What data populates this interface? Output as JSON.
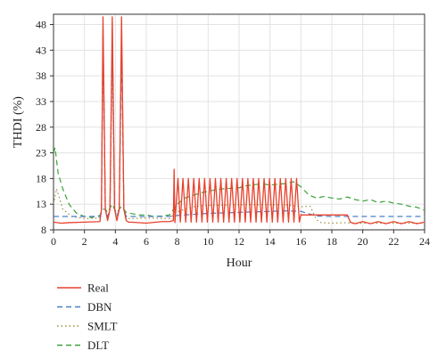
{
  "chart_data": {
    "type": "line",
    "xlabel": "Hour",
    "ylabel": "THDI (%)",
    "xlim": [
      0,
      24
    ],
    "ylim": [
      8,
      50
    ],
    "xticks": [
      "0",
      "2",
      "4",
      "6",
      "8",
      "10",
      "12",
      "14",
      "16",
      "18",
      "20",
      "22",
      "24"
    ],
    "yticks": [
      "8",
      "13",
      "18",
      "23",
      "28",
      "33",
      "38",
      "43",
      "48"
    ],
    "grid": true,
    "legend_position": "below-left",
    "series": [
      {
        "name": "Real",
        "color": "#e8412c",
        "style": "solid",
        "x": [
          0,
          0.5,
          1,
          2,
          3,
          3.1,
          3.2,
          3.35,
          3.5,
          3.65,
          3.8,
          3.95,
          4.1,
          4.25,
          4.4,
          4.55,
          4.7,
          4.85,
          5,
          6,
          7,
          7.5,
          7.75,
          7.8,
          7.85,
          8.05,
          8.2,
          8.37,
          8.55,
          8.72,
          8.9,
          9.07,
          9.25,
          9.42,
          9.6,
          9.77,
          9.95,
          10.12,
          10.3,
          10.47,
          10.65,
          10.82,
          11,
          11.17,
          11.35,
          11.52,
          11.7,
          11.87,
          12.05,
          12.22,
          12.4,
          12.57,
          12.75,
          12.92,
          13.1,
          13.27,
          13.45,
          13.62,
          13.8,
          13.97,
          14.15,
          14.32,
          14.5,
          14.67,
          14.85,
          15.02,
          15.2,
          15.37,
          15.55,
          15.72,
          15.9,
          16.0,
          16.05,
          17,
          18,
          19,
          19.2,
          19.5,
          20,
          20.5,
          21,
          21.5,
          22,
          22.5,
          23,
          23.5,
          24
        ],
        "y": [
          9.5,
          9.3,
          9.4,
          9.5,
          9.6,
          12,
          49.5,
          12,
          9.8,
          12,
          49.5,
          12,
          9.8,
          12,
          49.5,
          12,
          9.8,
          9.5,
          9.5,
          9.3,
          9.6,
          9.6,
          9.8,
          19.8,
          9.4,
          18,
          9.5,
          18,
          9.5,
          18,
          9.5,
          18,
          9.5,
          18,
          9.5,
          18,
          9.5,
          18,
          9.5,
          18,
          9.5,
          18,
          9.5,
          18,
          9.5,
          18,
          9.5,
          18,
          9.5,
          18,
          9.5,
          18,
          9.5,
          18,
          9.5,
          18,
          9.5,
          18,
          9.5,
          18,
          9.5,
          18,
          9.5,
          18,
          9.5,
          18,
          9.5,
          18,
          9.5,
          18,
          9.5,
          11,
          10.9,
          10.9,
          10.9,
          10.9,
          9.5,
          9.2,
          9.6,
          9.2,
          9.6,
          9.2,
          9.6,
          9.2,
          9.6,
          9.2,
          9.5
        ]
      },
      {
        "name": "DBN",
        "color": "#4a7fc9",
        "style": "dashed",
        "x": [
          0,
          3,
          3.1,
          3.2,
          3.35,
          3.5,
          3.65,
          3.8,
          3.95,
          4.1,
          4.25,
          4.4,
          4.55,
          4.7,
          4.9,
          7.5,
          8,
          9,
          10,
          11,
          12,
          13,
          14,
          15,
          16,
          17,
          18,
          24
        ],
        "y": [
          10.6,
          10.6,
          12,
          47,
          12,
          10.6,
          12,
          45,
          12,
          10.6,
          12,
          44,
          12,
          10.6,
          10.6,
          10.6,
          10.8,
          11,
          11.2,
          11.3,
          11.4,
          11.5,
          11.6,
          11.7,
          11.6,
          10.7,
          10.6,
          10.6
        ]
      },
      {
        "name": "SMLT",
        "color": "#9a8f3a",
        "style": "dotted",
        "x": [
          0,
          0.2,
          0.6,
          1.2,
          2,
          3,
          3.1,
          3.2,
          3.35,
          3.5,
          3.65,
          3.8,
          3.95,
          4.1,
          4.25,
          4.4,
          4.55,
          4.7,
          5,
          6,
          7.5,
          8,
          9,
          10,
          11,
          12,
          13,
          14,
          15,
          16,
          16.6,
          17,
          17.3,
          18,
          19,
          19.5,
          20,
          22,
          24
        ],
        "y": [
          13,
          16,
          12,
          10.6,
          10.2,
          10.3,
          12,
          44,
          12,
          10.2,
          12,
          42,
          12,
          10.2,
          12,
          43,
          12,
          10.2,
          10.2,
          10.3,
          10.2,
          11.5,
          12.5,
          12.8,
          12.8,
          12.9,
          12.9,
          12.9,
          12.9,
          12.5,
          12.6,
          10,
          9.4,
          9.3,
          9.4,
          9.2,
          9.3,
          9.3,
          9.3
        ]
      },
      {
        "name": "DLT",
        "color": "#3aa23a",
        "style": "dashed",
        "x": [
          0,
          0.1,
          0.3,
          0.6,
          1,
          1.5,
          2,
          2.5,
          3,
          3.2,
          3.35,
          3.5,
          3.8,
          3.95,
          4.1,
          4.4,
          4.55,
          4.7,
          5,
          5.5,
          6,
          6.5,
          7,
          7.5,
          8,
          8.5,
          9,
          9.5,
          10,
          10.5,
          11,
          11.5,
          12,
          12.5,
          13,
          13.5,
          14,
          14.5,
          15,
          15.5,
          16,
          16.5,
          17,
          17.5,
          18,
          18.5,
          19,
          19.5,
          20,
          20.5,
          21,
          21.5,
          22,
          22.5,
          23,
          23.5,
          24
        ],
        "y": [
          23,
          24,
          19,
          16,
          13,
          11.2,
          10.6,
          10.4,
          10.8,
          12,
          12,
          11.4,
          13,
          12,
          11.4,
          12.6,
          12,
          11.4,
          11.2,
          10.9,
          10.9,
          10.6,
          10.7,
          10.9,
          13,
          14.2,
          14.7,
          15.2,
          15.5,
          15.8,
          16,
          16.1,
          16.2,
          16.6,
          16.8,
          17,
          16.7,
          16.9,
          17,
          17.4,
          16.4,
          14.8,
          14.2,
          14.5,
          14.2,
          14.0,
          14.4,
          13.9,
          13.6,
          13.9,
          13.3,
          13.6,
          13.2,
          13.0,
          12.6,
          12.4,
          11.8
        ]
      }
    ]
  }
}
